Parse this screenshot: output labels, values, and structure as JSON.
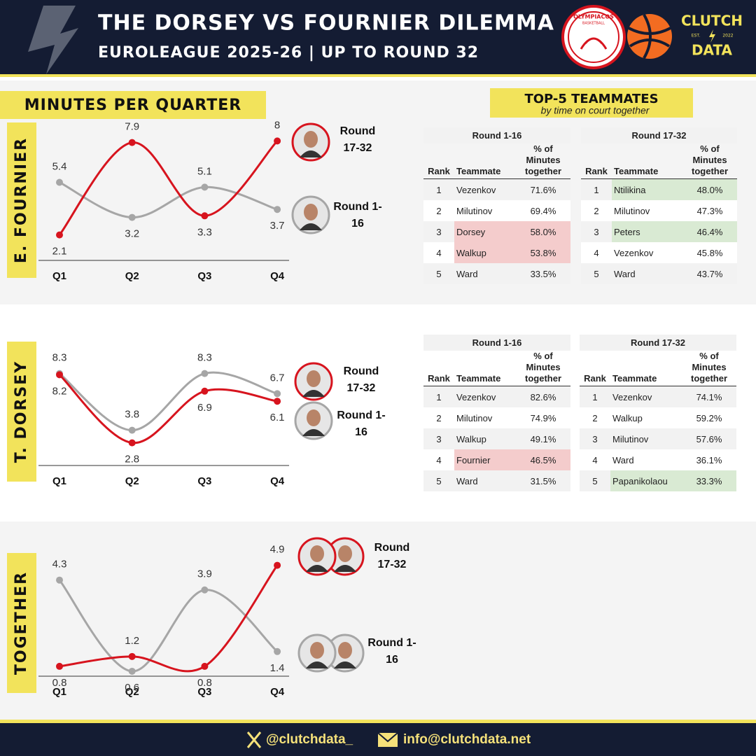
{
  "header": {
    "title": "THE DORSEY VS FOURNIER DILEMMA",
    "subtitle": "EUROLEAGUE 2025-26 | UP TO ROUND 32",
    "club_logo": [
      "OLYMPIACOS",
      "BASKETBALL"
    ],
    "brand": {
      "name": "CLUTCH",
      "est": "EST.",
      "year": "2022",
      "tag": "DATA"
    }
  },
  "section_title": "MINUTES PER QUARTER",
  "chart_data": [
    {
      "type": "line",
      "title": "E. FOURNIER",
      "categories": [
        "Q1",
        "Q2",
        "Q3",
        "Q4"
      ],
      "series": [
        {
          "name": "Round 17-32",
          "color": "#d7141e",
          "values": [
            2.1,
            7.9,
            3.3,
            8.0
          ]
        },
        {
          "name": "Round 1-16",
          "color": "#a6a6a6",
          "values": [
            5.4,
            3.2,
            5.1,
            3.7
          ]
        }
      ],
      "ylim": [
        0.5,
        8.5
      ]
    },
    {
      "type": "line",
      "title": "T. DORSEY",
      "categories": [
        "Q1",
        "Q2",
        "Q3",
        "Q4"
      ],
      "series": [
        {
          "name": "Round 17-32",
          "color": "#d7141e",
          "values": [
            8.2,
            2.8,
            6.9,
            6.1
          ]
        },
        {
          "name": "Round 1-16",
          "color": "#a6a6a6",
          "values": [
            8.3,
            3.8,
            8.3,
            6.7
          ]
        }
      ],
      "ylim": [
        1,
        9
      ]
    },
    {
      "type": "line",
      "title": "TOGETHER",
      "categories": [
        "Q1",
        "Q2",
        "Q3",
        "Q4"
      ],
      "series": [
        {
          "name": "Round 17-32",
          "color": "#d7141e",
          "values": [
            0.8,
            1.2,
            0.8,
            4.9
          ]
        },
        {
          "name": "Round 1-16",
          "color": "#a6a6a6",
          "values": [
            4.3,
            0.6,
            3.9,
            1.4
          ]
        }
      ],
      "ylim": [
        0.4,
        5.2
      ]
    }
  ],
  "teammates": {
    "title": "TOP-5 TEAMMATES",
    "subtitle": "by time on court together",
    "tables": [
      [
        {
          "title": "Round 1-16",
          "columns": [
            "Rank",
            "Teammate",
            "% of Minutes together"
          ],
          "rows": [
            [
              1,
              "Vezenkov",
              "71.6%"
            ],
            [
              2,
              "Milutinov",
              "69.4%"
            ],
            [
              3,
              "Dorsey",
              "58.0%"
            ],
            [
              4,
              "Walkup",
              "53.8%"
            ],
            [
              5,
              "Ward",
              "33.5%"
            ]
          ],
          "highlight_rows": [
            2,
            3
          ],
          "highlight_color": "#f4cccc"
        },
        {
          "title": "Round 17-32",
          "columns": [
            "Rank",
            "Teammate",
            "% of Minutes together"
          ],
          "rows": [
            [
              1,
              "Ntilikina",
              "48.0%"
            ],
            [
              2,
              "Milutinov",
              "47.3%"
            ],
            [
              3,
              "Peters",
              "46.4%"
            ],
            [
              4,
              "Vezenkov",
              "45.8%"
            ],
            [
              5,
              "Ward",
              "43.7%"
            ]
          ],
          "highlight_rows": [
            0,
            2
          ],
          "highlight_color": "#d9ead3"
        }
      ],
      [
        {
          "title": "Round 1-16",
          "columns": [
            "Rank",
            "Teammate",
            "% of Minutes together"
          ],
          "rows": [
            [
              1,
              "Vezenkov",
              "82.6%"
            ],
            [
              2,
              "Milutinov",
              "74.9%"
            ],
            [
              3,
              "Walkup",
              "49.1%"
            ],
            [
              4,
              "Fournier",
              "46.5%"
            ],
            [
              5,
              "Ward",
              "31.5%"
            ]
          ],
          "highlight_rows": [
            3
          ],
          "highlight_color": "#f4cccc"
        },
        {
          "title": "Round 17-32",
          "columns": [
            "Rank",
            "Teammate",
            "% of Minutes together"
          ],
          "rows": [
            [
              1,
              "Vezenkov",
              "74.1%"
            ],
            [
              2,
              "Walkup",
              "59.2%"
            ],
            [
              3,
              "Milutinov",
              "57.6%"
            ],
            [
              4,
              "Ward",
              "36.1%"
            ],
            [
              5,
              "Papanikolaou",
              "33.3%"
            ]
          ],
          "highlight_rows": [
            4
          ],
          "highlight_color": "#d9ead3"
        }
      ]
    ]
  },
  "footer": {
    "handle": "@clutchdata_",
    "email": "info@clutchdata.net"
  }
}
